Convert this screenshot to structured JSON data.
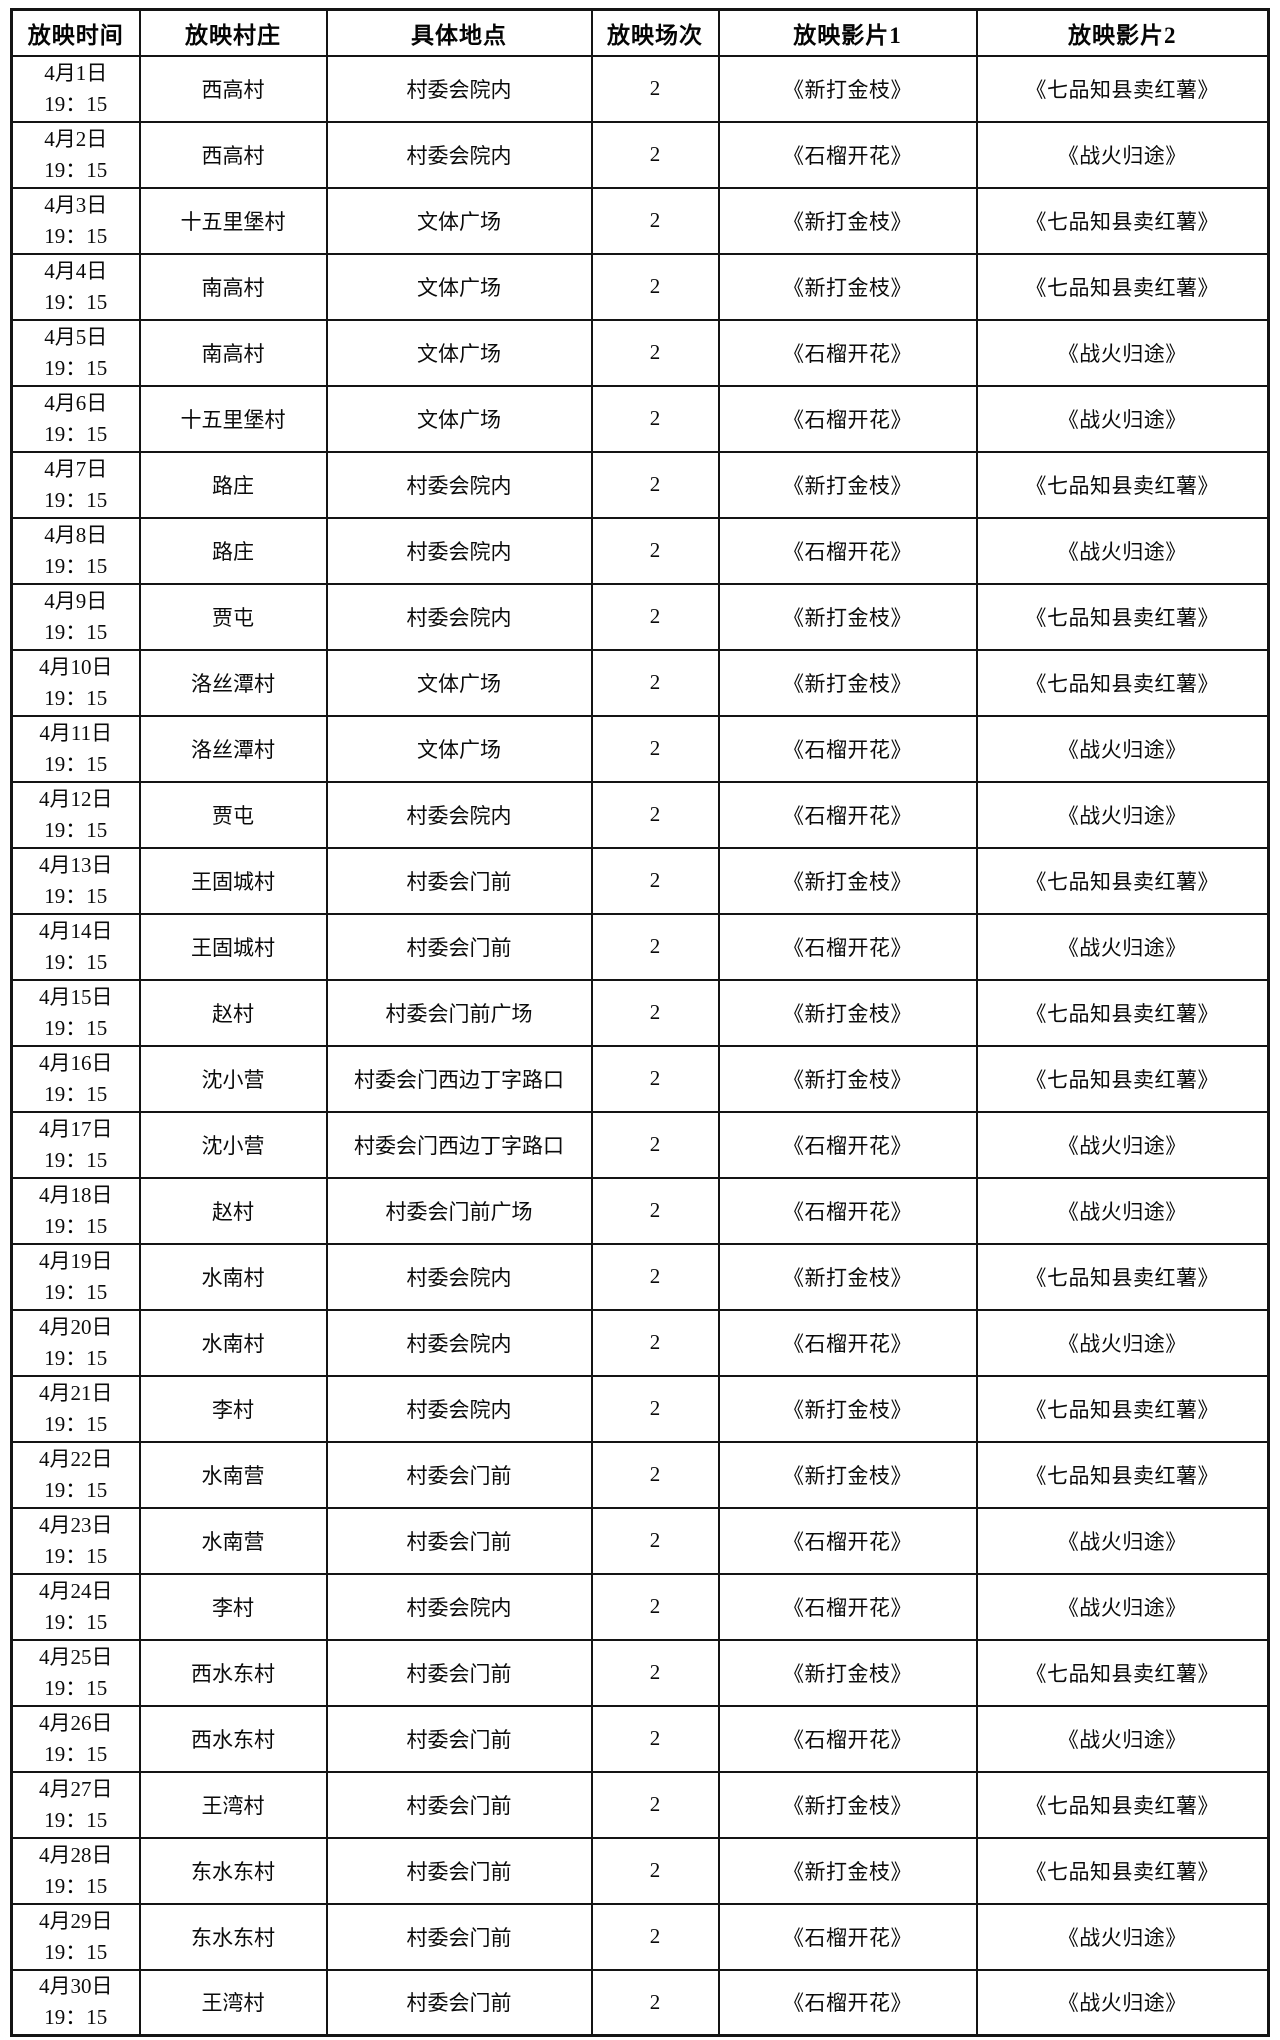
{
  "table": {
    "headers": [
      "放映时间",
      "放映村庄",
      "具体地点",
      "放映场次",
      "放映影片1",
      "放映影片2"
    ],
    "rows": [
      {
        "date": "4月1日",
        "time": "19：15",
        "village": "西高村",
        "location": "村委会院内",
        "sessions": "2",
        "film1": "《新打金枝》",
        "film2": "《七品知县卖红薯》"
      },
      {
        "date": "4月2日",
        "time": "19：15",
        "village": "西高村",
        "location": "村委会院内",
        "sessions": "2",
        "film1": "《石榴开花》",
        "film2": "《战火归途》"
      },
      {
        "date": "4月3日",
        "time": "19：15",
        "village": "十五里堡村",
        "location": "文体广场",
        "sessions": "2",
        "film1": "《新打金枝》",
        "film2": "《七品知县卖红薯》"
      },
      {
        "date": "4月4日",
        "time": "19：15",
        "village": "南高村",
        "location": "文体广场",
        "sessions": "2",
        "film1": "《新打金枝》",
        "film2": "《七品知县卖红薯》"
      },
      {
        "date": "4月5日",
        "time": "19：15",
        "village": "南高村",
        "location": "文体广场",
        "sessions": "2",
        "film1": "《石榴开花》",
        "film2": "《战火归途》"
      },
      {
        "date": "4月6日",
        "time": "19：15",
        "village": "十五里堡村",
        "location": "文体广场",
        "sessions": "2",
        "film1": "《石榴开花》",
        "film2": "《战火归途》"
      },
      {
        "date": "4月7日",
        "time": "19：15",
        "village": "路庄",
        "location": "村委会院内",
        "sessions": "2",
        "film1": "《新打金枝》",
        "film2": "《七品知县卖红薯》"
      },
      {
        "date": "4月8日",
        "time": "19：15",
        "village": "路庄",
        "location": "村委会院内",
        "sessions": "2",
        "film1": "《石榴开花》",
        "film2": "《战火归途》"
      },
      {
        "date": "4月9日",
        "time": "19：15",
        "village": "贾屯",
        "location": "村委会院内",
        "sessions": "2",
        "film1": "《新打金枝》",
        "film2": "《七品知县卖红薯》"
      },
      {
        "date": "4月10日",
        "time": "19：15",
        "village": "洛丝潭村",
        "location": "文体广场",
        "sessions": "2",
        "film1": "《新打金枝》",
        "film2": "《七品知县卖红薯》"
      },
      {
        "date": "4月11日",
        "time": "19：15",
        "village": "洛丝潭村",
        "location": "文体广场",
        "sessions": "2",
        "film1": "《石榴开花》",
        "film2": "《战火归途》"
      },
      {
        "date": "4月12日",
        "time": "19：15",
        "village": "贾屯",
        "location": "村委会院内",
        "sessions": "2",
        "film1": "《石榴开花》",
        "film2": "《战火归途》"
      },
      {
        "date": "4月13日",
        "time": "19：15",
        "village": "王固城村",
        "location": "村委会门前",
        "sessions": "2",
        "film1": "《新打金枝》",
        "film2": "《七品知县卖红薯》"
      },
      {
        "date": "4月14日",
        "time": "19：15",
        "village": "王固城村",
        "location": "村委会门前",
        "sessions": "2",
        "film1": "《石榴开花》",
        "film2": "《战火归途》"
      },
      {
        "date": "4月15日",
        "time": "19：15",
        "village": "赵村",
        "location": "村委会门前广场",
        "sessions": "2",
        "film1": "《新打金枝》",
        "film2": "《七品知县卖红薯》"
      },
      {
        "date": "4月16日",
        "time": "19：15",
        "village": "沈小营",
        "location": "村委会门西边丁字路口",
        "sessions": "2",
        "film1": "《新打金枝》",
        "film2": "《七品知县卖红薯》"
      },
      {
        "date": "4月17日",
        "time": "19：15",
        "village": "沈小营",
        "location": "村委会门西边丁字路口",
        "sessions": "2",
        "film1": "《石榴开花》",
        "film2": "《战火归途》"
      },
      {
        "date": "4月18日",
        "time": "19：15",
        "village": "赵村",
        "location": "村委会门前广场",
        "sessions": "2",
        "film1": "《石榴开花》",
        "film2": "《战火归途》"
      },
      {
        "date": "4月19日",
        "time": "19：15",
        "village": "水南村",
        "location": "村委会院内",
        "sessions": "2",
        "film1": "《新打金枝》",
        "film2": "《七品知县卖红薯》"
      },
      {
        "date": "4月20日",
        "time": "19：15",
        "village": "水南村",
        "location": "村委会院内",
        "sessions": "2",
        "film1": "《石榴开花》",
        "film2": "《战火归途》"
      },
      {
        "date": "4月21日",
        "time": "19：15",
        "village": "李村",
        "location": "村委会院内",
        "sessions": "2",
        "film1": "《新打金枝》",
        "film2": "《七品知县卖红薯》"
      },
      {
        "date": "4月22日",
        "time": "19：15",
        "village": "水南营",
        "location": "村委会门前",
        "sessions": "2",
        "film1": "《新打金枝》",
        "film2": "《七品知县卖红薯》"
      },
      {
        "date": "4月23日",
        "time": "19：15",
        "village": "水南营",
        "location": "村委会门前",
        "sessions": "2",
        "film1": "《石榴开花》",
        "film2": "《战火归途》"
      },
      {
        "date": "4月24日",
        "time": "19：15",
        "village": "李村",
        "location": "村委会院内",
        "sessions": "2",
        "film1": "《石榴开花》",
        "film2": "《战火归途》"
      },
      {
        "date": "4月25日",
        "time": "19：15",
        "village": "西水东村",
        "location": "村委会门前",
        "sessions": "2",
        "film1": "《新打金枝》",
        "film2": "《七品知县卖红薯》"
      },
      {
        "date": "4月26日",
        "time": "19：15",
        "village": "西水东村",
        "location": "村委会门前",
        "sessions": "2",
        "film1": "《石榴开花》",
        "film2": "《战火归途》"
      },
      {
        "date": "4月27日",
        "time": "19：15",
        "village": "王湾村",
        "location": "村委会门前",
        "sessions": "2",
        "film1": "《新打金枝》",
        "film2": "《七品知县卖红薯》"
      },
      {
        "date": "4月28日",
        "time": "19：15",
        "village": "东水东村",
        "location": "村委会门前",
        "sessions": "2",
        "film1": "《新打金枝》",
        "film2": "《七品知县卖红薯》"
      },
      {
        "date": "4月29日",
        "time": "19：15",
        "village": "东水东村",
        "location": "村委会门前",
        "sessions": "2",
        "film1": "《石榴开花》",
        "film2": "《战火归途》"
      },
      {
        "date": "4月30日",
        "time": "19：15",
        "village": "王湾村",
        "location": "村委会门前",
        "sessions": "2",
        "film1": "《石榴开花》",
        "film2": "《战火归途》"
      }
    ]
  },
  "colors": {
    "border": "#141414",
    "text": "#0b0b0b",
    "background": "#ffffff"
  }
}
